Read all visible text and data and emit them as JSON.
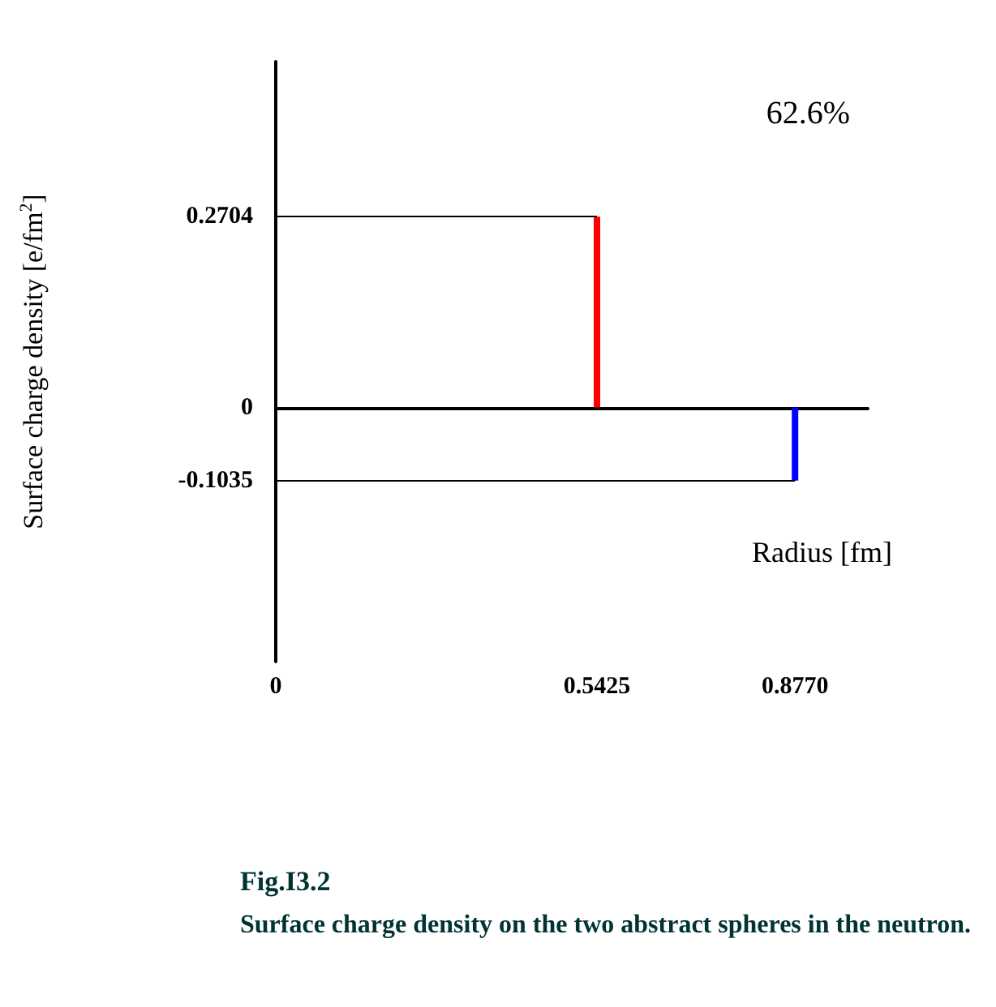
{
  "chart_data": {
    "type": "bar",
    "title": "Fig.I3.2",
    "subtitle": "Surface charge density on the two abstract spheres in the neutron.",
    "xlabel": "Radius [fm]",
    "ylabel": "Surface charge density [e/fm$^{2}$]",
    "annotations": [
      "62.6%"
    ],
    "x": [
      0.5425,
      0.877
    ],
    "values": [
      0.2704,
      -0.1035
    ],
    "colors": [
      "#ff0000",
      "#0000ff"
    ],
    "xlim": [
      0,
      1.0
    ],
    "xticks": [
      0,
      0.5425,
      {
        "value": 0.877,
        "label": "0.8770"
      }
    ],
    "ylim": [
      -0.36,
      0.49
    ],
    "yticks": [
      -0.1035,
      0,
      0.2704
    ],
    "grid": false,
    "ref_lines": [
      {
        "axis": "y",
        "value": 0.2704,
        "color": "#000000"
      },
      {
        "axis": "y",
        "value": -0.1035,
        "color": "#000000"
      }
    ]
  }
}
